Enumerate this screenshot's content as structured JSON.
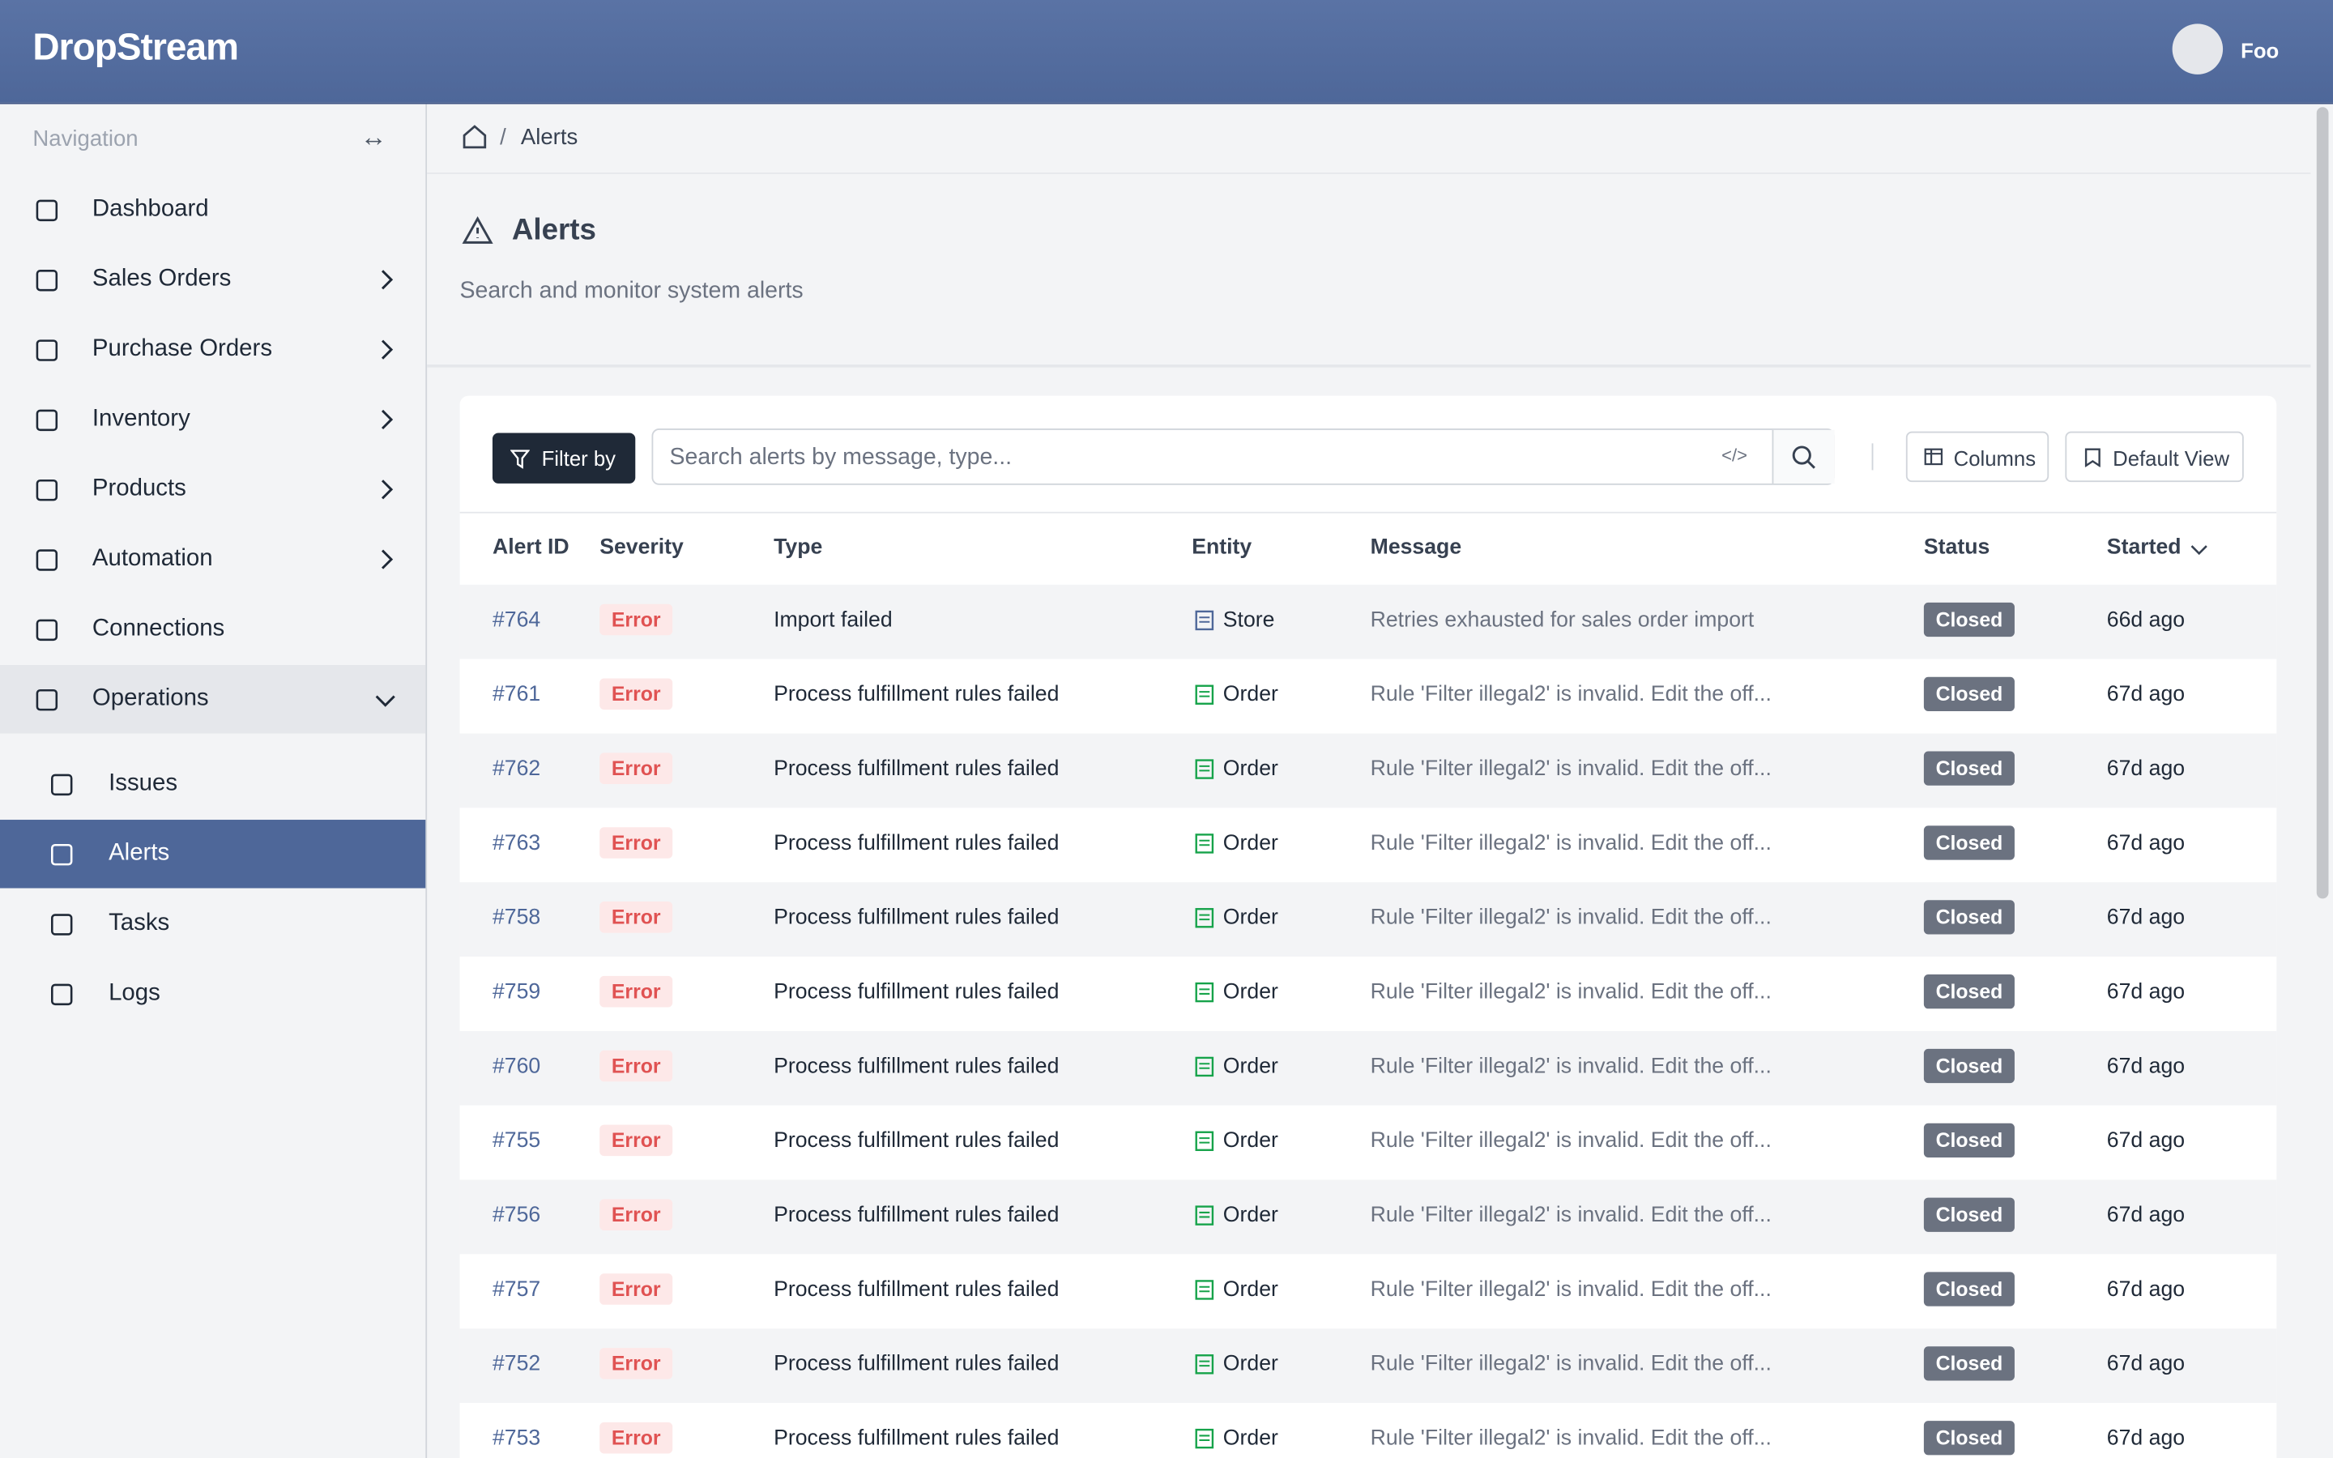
{
  "header": {
    "brand": "DropStream",
    "user": "Foo"
  },
  "nav": {
    "title": "Navigation",
    "items": [
      {
        "label": "Dashboard"
      },
      {
        "label": "Sales Orders"
      },
      {
        "label": "Purchase Orders"
      },
      {
        "label": "Inventory"
      },
      {
        "label": "Products"
      },
      {
        "label": "Automation"
      },
      {
        "label": "Connections"
      },
      {
        "label": "Operations"
      }
    ],
    "subitems": [
      {
        "label": "Issues"
      },
      {
        "label": "Alerts"
      },
      {
        "label": "Tasks"
      },
      {
        "label": "Logs"
      }
    ]
  },
  "breadcrumb": {
    "current": "Alerts"
  },
  "page": {
    "title": "Alerts",
    "subtitle": "Search and monitor system alerts"
  },
  "toolbar": {
    "filter": "Filter by",
    "search_placeholder": "Search alerts by message, type...",
    "columns": "Columns",
    "default_view": "Default View"
  },
  "table": {
    "columns": [
      "Alert ID",
      "Severity",
      "Type",
      "Entity",
      "Message",
      "Status",
      "Started"
    ],
    "rows": [
      [
        "#764",
        "Error",
        "Import failed",
        "Store",
        "Retries exhausted for sales order import",
        "Closed",
        "66d ago"
      ],
      [
        "#761",
        "Error",
        "Process fulfillment rules failed",
        "Order",
        "Rule 'Filter illegal2' is invalid. Edit the off...",
        "Closed",
        "67d ago"
      ],
      [
        "#762",
        "Error",
        "Process fulfillment rules failed",
        "Order",
        "Rule 'Filter illegal2' is invalid. Edit the off...",
        "Closed",
        "67d ago"
      ],
      [
        "#763",
        "Error",
        "Process fulfillment rules failed",
        "Order",
        "Rule 'Filter illegal2' is invalid. Edit the off...",
        "Closed",
        "67d ago"
      ],
      [
        "#758",
        "Error",
        "Process fulfillment rules failed",
        "Order",
        "Rule 'Filter illegal2' is invalid. Edit the off...",
        "Closed",
        "67d ago"
      ],
      [
        "#759",
        "Error",
        "Process fulfillment rules failed",
        "Order",
        "Rule 'Filter illegal2' is invalid. Edit the off...",
        "Closed",
        "67d ago"
      ],
      [
        "#760",
        "Error",
        "Process fulfillment rules failed",
        "Order",
        "Rule 'Filter illegal2' is invalid. Edit the off...",
        "Closed",
        "67d ago"
      ],
      [
        "#755",
        "Error",
        "Process fulfillment rules failed",
        "Order",
        "Rule 'Filter illegal2' is invalid. Edit the off...",
        "Closed",
        "67d ago"
      ],
      [
        "#756",
        "Error",
        "Process fulfillment rules failed",
        "Order",
        "Rule 'Filter illegal2' is invalid. Edit the off...",
        "Closed",
        "67d ago"
      ],
      [
        "#757",
        "Error",
        "Process fulfillment rules failed",
        "Order",
        "Rule 'Filter illegal2' is invalid. Edit the off...",
        "Closed",
        "67d ago"
      ],
      [
        "#752",
        "Error",
        "Process fulfillment rules failed",
        "Order",
        "Rule 'Filter illegal2' is invalid. Edit the off...",
        "Closed",
        "67d ago"
      ],
      [
        "#753",
        "Error",
        "Process fulfillment rules failed",
        "Order",
        "Rule 'Filter illegal2' is invalid. Edit the off...",
        "Closed",
        "67d ago"
      ]
    ]
  }
}
